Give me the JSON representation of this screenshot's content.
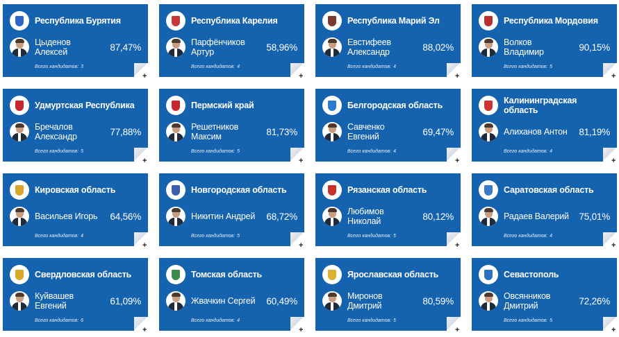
{
  "ui": {
    "candidates_label": "Всего кандидатов:",
    "expand_symbol": "+"
  },
  "cards": [
    {
      "region": "Республика Бурятия",
      "winner": "Цыденов Алексей",
      "percent": "87,47%",
      "candidates": "3",
      "crest_color": "#2d66c6"
    },
    {
      "region": "Республика Карелия",
      "winner": "Парфёнчиков Артур",
      "percent": "58,96%",
      "candidates": "4",
      "crest_color": "#c73838"
    },
    {
      "region": "Республика Марий Эл",
      "winner": "Евстифеев Александр",
      "percent": "88,02%",
      "candidates": "4",
      "crest_color": "#7a3b2e"
    },
    {
      "region": "Республика Мордовия",
      "winner": "Волков Владимир",
      "percent": "90,15%",
      "candidates": "5",
      "crest_color": "#b8302f"
    },
    {
      "region": "Удмуртская Республика",
      "winner": "Бречалов Александр",
      "percent": "77,88%",
      "candidates": "5",
      "crest_color": "#c7262e"
    },
    {
      "region": "Пермский край",
      "winner": "Решетников Максим",
      "percent": "81,73%",
      "candidates": "5",
      "crest_color": "#c8252c"
    },
    {
      "region": "Белгородская область",
      "winner": "Савченко Евгений",
      "percent": "69,47%",
      "candidates": "4",
      "crest_color": "#2d7bd1"
    },
    {
      "region": "Калининградская область",
      "winner": "Алиханов Антон",
      "percent": "81,19%",
      "candidates": "4",
      "crest_color": "#d03232"
    },
    {
      "region": "Кировская область",
      "winner": "Васильев Игорь",
      "percent": "64,56%",
      "candidates": "4",
      "crest_color": "#d9a52a"
    },
    {
      "region": "Новгородская область",
      "winner": "Никитин Андрей",
      "percent": "68,72%",
      "candidates": "5",
      "crest_color": "#3a5fa8"
    },
    {
      "region": "Рязанская область",
      "winner": "Любимов Николай",
      "percent": "80,12%",
      "candidates": "5",
      "crest_color": "#c8332b"
    },
    {
      "region": "Саратовская область",
      "winner": "Радаев Валерий",
      "percent": "75,01%",
      "candidates": "4",
      "crest_color": "#3b78c8"
    },
    {
      "region": "Свердловская область",
      "winner": "Куйвашев Евгений",
      "percent": "61,09%",
      "candidates": "6",
      "crest_color": "#d6a929"
    },
    {
      "region": "Томская область",
      "winner": "Жвачкин Сергей",
      "percent": "60,49%",
      "candidates": "4",
      "crest_color": "#3d8c49"
    },
    {
      "region": "Ярославская область",
      "winner": "Миронов Дмитрий",
      "percent": "80,59%",
      "candidates": "5",
      "crest_color": "#d9b12e"
    },
    {
      "region": "Севастополь",
      "winner": "Овсянников Дмитрий",
      "percent": "72,26%",
      "candidates": "5",
      "crest_color": "#2f6fc0"
    }
  ]
}
